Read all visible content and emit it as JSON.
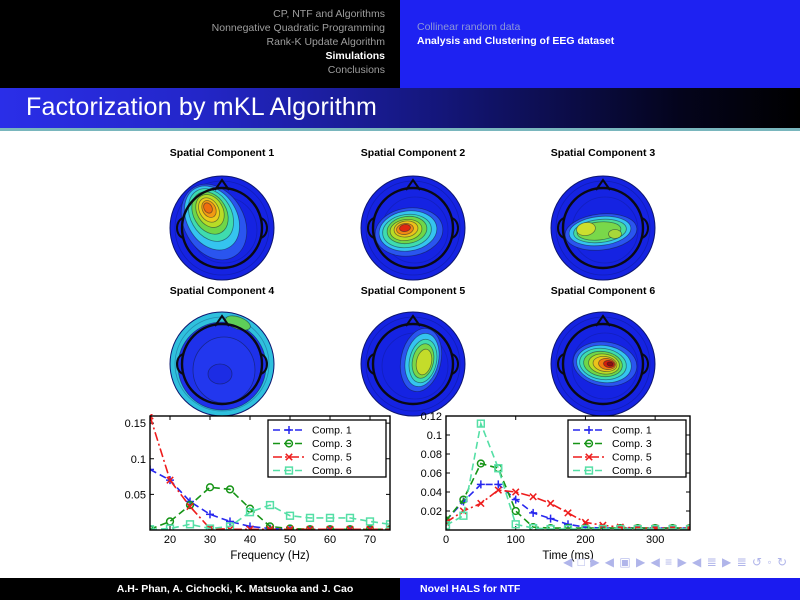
{
  "header": {
    "section_nav": [
      {
        "label": "CP, NTF and Algorithms",
        "active": false
      },
      {
        "label": "Nonnegative Quadratic Programming",
        "active": false
      },
      {
        "label": "Rank-K Update Algorithm",
        "active": false
      },
      {
        "label": "Simulations",
        "active": true
      },
      {
        "label": "Conclusions",
        "active": false
      }
    ],
    "subsection_nav": [
      {
        "label": "Collinear random data",
        "active": false
      },
      {
        "label": "Analysis and Clustering of EEG dataset",
        "active": true
      }
    ]
  },
  "title": "Factorization by mKL Algorithm",
  "figure": {
    "topomaps": [
      {
        "title": "Spatial Component 1",
        "hotspot": "left frontal orange-yellow peak"
      },
      {
        "title": "Spatial Component 2",
        "hotspot": "left central red peak"
      },
      {
        "title": "Spatial Component 3",
        "hotspot": "two central yellow-green peaks, left and right"
      },
      {
        "title": "Spatial Component 4",
        "hotspot": "uniform blue, cyan rim, faint green at top-right edge"
      },
      {
        "title": "Spatial Component 5",
        "hotspot": "right central vertical yellow-green blob"
      },
      {
        "title": "Spatial Component 6",
        "hotspot": "central-right dark red peak"
      }
    ]
  },
  "chart_data": [
    {
      "type": "line",
      "title": "",
      "xlabel": "Frequency (Hz)",
      "ylabel": "",
      "xlim": [
        15,
        75
      ],
      "ylim": [
        0,
        0.16
      ],
      "xticks": [
        20,
        30,
        40,
        50,
        60,
        70
      ],
      "yticks": [
        0.05,
        0.1,
        0.15
      ],
      "grid": false,
      "legend_position": "top-right",
      "x": [
        15,
        20,
        25,
        30,
        35,
        40,
        45,
        50,
        55,
        60,
        65,
        70,
        75
      ],
      "series": [
        {
          "name": "Comp. 1",
          "color": "#2727ee",
          "line": "dashed",
          "marker": "plus",
          "values": [
            0.085,
            0.07,
            0.04,
            0.022,
            0.012,
            0.005,
            0.002,
            0.001,
            0.001,
            0.001,
            0.001,
            0.001,
            0.001
          ]
        },
        {
          "name": "Comp. 3",
          "color": "#169416",
          "line": "dashed",
          "marker": "circle",
          "values": [
            0.001,
            0.012,
            0.035,
            0.06,
            0.057,
            0.03,
            0.005,
            0.002,
            0.001,
            0.001,
            0.001,
            0.001,
            0.001
          ]
        },
        {
          "name": "Comp. 5",
          "color": "#ee1c1c",
          "line": "dashdot",
          "marker": "x",
          "values": [
            0.16,
            0.07,
            0.033,
            0.002,
            0.001,
            0.001,
            0.001,
            0.001,
            0.001,
            0.001,
            0.001,
            0.001,
            0.001
          ]
        },
        {
          "name": "Comp. 6",
          "color": "#55dfa6",
          "line": "dashed",
          "marker": "square",
          "values": [
            0.001,
            0.002,
            0.008,
            0.002,
            0.005,
            0.025,
            0.035,
            0.02,
            0.017,
            0.017,
            0.017,
            0.012,
            0.008
          ]
        }
      ]
    },
    {
      "type": "line",
      "title": "",
      "xlabel": "Time (ms)",
      "ylabel": "",
      "xlim": [
        0,
        350
      ],
      "ylim": [
        0,
        0.12
      ],
      "xticks": [
        0,
        100,
        200,
        300
      ],
      "yticks": [
        0.02,
        0.04,
        0.06,
        0.08,
        0.1,
        0.12
      ],
      "grid": false,
      "legend_position": "top-right",
      "x": [
        0,
        25,
        50,
        75,
        100,
        125,
        150,
        175,
        200,
        225,
        250,
        275,
        300,
        325,
        350
      ],
      "series": [
        {
          "name": "Comp. 1",
          "color": "#2727ee",
          "line": "dashed",
          "marker": "plus",
          "values": [
            0.01,
            0.03,
            0.048,
            0.048,
            0.032,
            0.018,
            0.012,
            0.006,
            0.003,
            0.002,
            0.002,
            0.002,
            0.002,
            0.002,
            0.002
          ]
        },
        {
          "name": "Comp. 3",
          "color": "#169416",
          "line": "dashed",
          "marker": "circle",
          "values": [
            0.01,
            0.032,
            0.07,
            0.065,
            0.02,
            0.003,
            0.002,
            0.002,
            0.002,
            0.002,
            0.002,
            0.002,
            0.002,
            0.002,
            0.002
          ]
        },
        {
          "name": "Comp. 5",
          "color": "#ee1c1c",
          "line": "dashdot",
          "marker": "x",
          "values": [
            0.008,
            0.02,
            0.028,
            0.042,
            0.04,
            0.035,
            0.028,
            0.018,
            0.008,
            0.005,
            0.003,
            0.002,
            0.002,
            0.002,
            0.002
          ]
        },
        {
          "name": "Comp. 6",
          "color": "#55dfa6",
          "line": "dashed",
          "marker": "square",
          "values": [
            0.005,
            0.015,
            0.112,
            0.065,
            0.006,
            0.002,
            0.001,
            0.001,
            0.001,
            0.001,
            0.001,
            0.001,
            0.001,
            0.001,
            0.001
          ]
        }
      ]
    }
  ],
  "footer": {
    "authors": "A.H- Phan, A. Cichocki, K. Matsuoka and J. Cao",
    "short_title": "Novel HALS for NTF"
  },
  "nav_symbols": "◀ □ ▶   ◀ ▣ ▶   ◀ ≡ ▶   ◀ ≣ ▶    ≣    ↺ ◦ ↻",
  "colors": {
    "accent_blue": "#1e22f2",
    "titlebar_left": "#2a2ee8",
    "divider_teal": "#79b6bd",
    "comp1": "#2727ee",
    "comp3": "#169416",
    "comp5": "#ee1c1c",
    "comp6": "#55dfa6"
  }
}
